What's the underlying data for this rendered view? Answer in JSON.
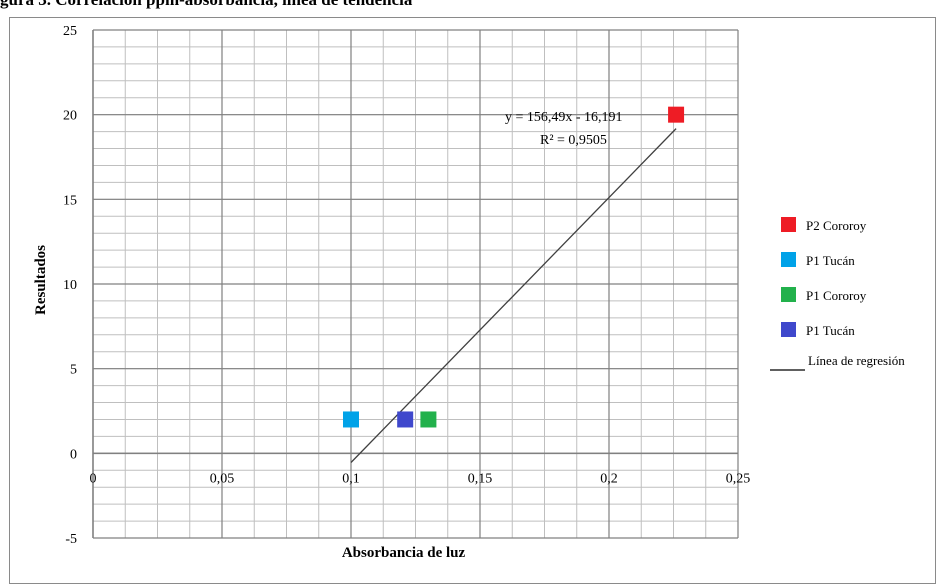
{
  "caption_fragment": "gura 3. Correlación ppm-absorbancia, línea de tendencia",
  "chart_data": {
    "type": "scatter",
    "title": "",
    "xlabel": "Absorbancia  de luz",
    "ylabel": "Resultados",
    "xlim": [
      0,
      0.25
    ],
    "ylim": [
      -5,
      25
    ],
    "x_ticks": [
      0,
      0.05,
      0.1,
      0.15,
      0.2,
      0.25
    ],
    "x_tick_labels": [
      "0",
      "0,05",
      "0,1",
      "0,15",
      "0,2",
      "0,25"
    ],
    "y_ticks": [
      -5,
      0,
      5,
      10,
      15,
      20,
      25
    ],
    "y_tick_labels": [
      "-5",
      "0",
      "5",
      "10",
      "15",
      "20",
      "25"
    ],
    "grid": true,
    "legend_position": "right",
    "series": [
      {
        "name": "P2 Cororoy",
        "color": "#ee1c25",
        "points": [
          [
            0.226,
            20
          ]
        ]
      },
      {
        "name": "P1 Tucán",
        "color": "#00a2e8",
        "points": [
          [
            0.1,
            2
          ]
        ]
      },
      {
        "name": "P1 Cororoy",
        "color": "#22b14c",
        "points": [
          [
            0.13,
            2
          ]
        ]
      },
      {
        "name": "P1 Tucán",
        "color": "#3f48cc",
        "points": [
          [
            0.121,
            2
          ]
        ]
      }
    ],
    "regression": {
      "name": "Línea de regresión",
      "color": "#404040",
      "slope": 156.49,
      "intercept": -16.191,
      "x_range": [
        0.1,
        0.226
      ],
      "equation": "y = 156,49x  - 16,191",
      "r2": "R² = 0,9505"
    }
  }
}
